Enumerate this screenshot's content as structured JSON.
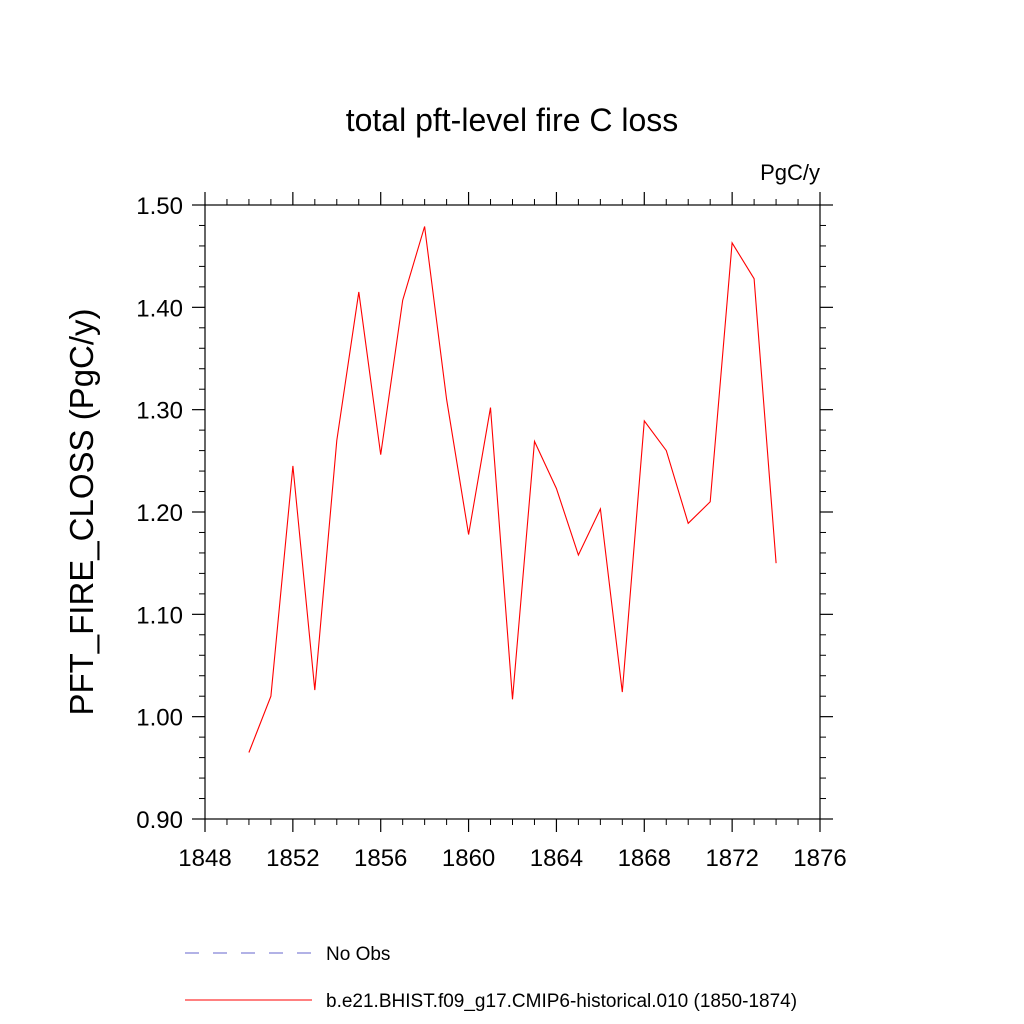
{
  "chart_data": {
    "type": "line",
    "title": "total pft-level fire C loss",
    "units": "PgC/y",
    "xlabel": "",
    "ylabel": "PFT_FIRE_CLOSS  (PgC/y)",
    "xlim": [
      1848,
      1876
    ],
    "ylim": [
      0.9,
      1.5
    ],
    "x_ticks": [
      "1848",
      "1852",
      "1856",
      "1860",
      "1864",
      "1868",
      "1872",
      "1876"
    ],
    "y_ticks": [
      "0.90",
      "1.00",
      "1.10",
      "1.20",
      "1.30",
      "1.40",
      "1.50"
    ],
    "series": [
      {
        "name": "b.e21.BHIST.f09_g17.CMIP6-historical.010 (1850-1874)",
        "color": "#ff0000",
        "style": "solid",
        "x": [
          1850,
          1851,
          1852,
          1853,
          1854,
          1855,
          1856,
          1857,
          1858,
          1859,
          1860,
          1861,
          1862,
          1863,
          1864,
          1865,
          1866,
          1867,
          1868,
          1869,
          1870,
          1871,
          1872,
          1873,
          1874
        ],
        "y": [
          0.965,
          1.02,
          1.245,
          1.026,
          1.27,
          1.415,
          1.256,
          1.407,
          1.479,
          1.31,
          1.178,
          1.302,
          1.017,
          1.269,
          1.223,
          1.158,
          1.203,
          1.024,
          1.289,
          1.26,
          1.189,
          1.21,
          1.463,
          1.428,
          1.15
        ]
      }
    ],
    "legend": {
      "placement": "bottom",
      "entries": [
        {
          "label": "No Obs",
          "color": "#6666cc",
          "style": "dashed"
        },
        {
          "label": "b.e21.BHIST.f09_g17.CMIP6-historical.010 (1850-1874)",
          "color": "#ff0000",
          "style": "solid"
        }
      ]
    },
    "grid": false
  }
}
